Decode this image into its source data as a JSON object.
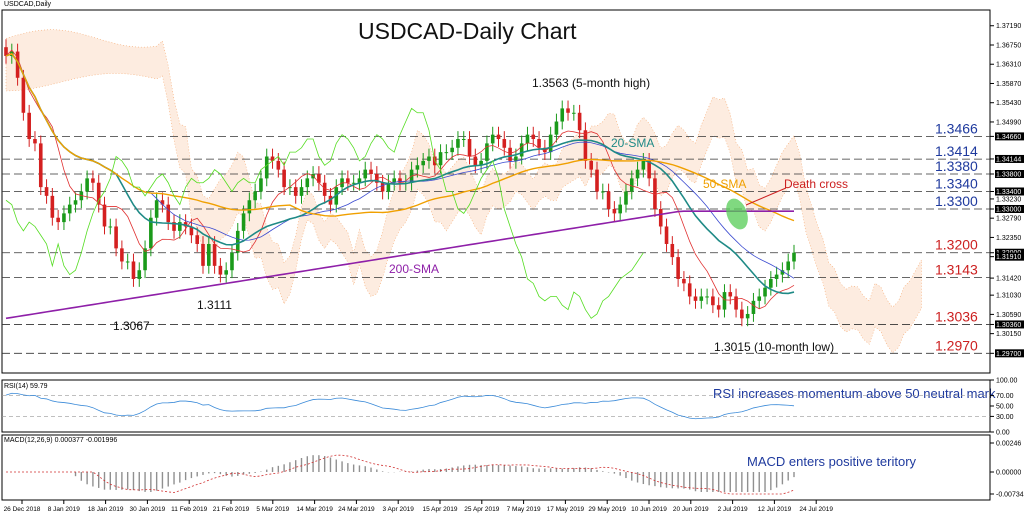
{
  "window": {
    "symbol": "USDCAD,Daily"
  },
  "title": "USDCAD-Daily Chart",
  "colors": {
    "up": "#1a9a1a",
    "down": "#d42020",
    "sma20": "#1f8a86",
    "sma50": "#f0a000",
    "sma200": "#8e1fa8",
    "annotation_blue": "#1f3a9e",
    "annotation_red": "#cc2020",
    "ichimoku_green": "#55dd22",
    "ichimoku_blue": "#3a4ad0",
    "ichimoku_red": "#e03030",
    "cloud": "#f4a870",
    "rsi": "#3a8ad8",
    "macd_hist": "#909090",
    "macd_signal": "#d03030",
    "death_cross": "#55cc55"
  },
  "chart_data": {
    "type": "candlestick",
    "y_range": [
      1.2925,
      1.3755
    ],
    "y_ticks": [
      "1.37190",
      "1.36750",
      "1.36310",
      "1.35870",
      "1.35430",
      "1.34990",
      "1.34660",
      "1.34144",
      "1.33800",
      "1.33400",
      "1.33230",
      "1.33000",
      "1.32790",
      "1.32350",
      "1.32000",
      "1.31910",
      "1.31420",
      "1.31030",
      "1.30590",
      "1.30360",
      "1.30150",
      "1.29700"
    ],
    "x_labels": [
      "26 Dec 2018",
      "8 Jan 2019",
      "18 Jan 2019",
      "30 Jan 2019",
      "11 Feb 2019",
      "21 Feb 2019",
      "5 Mar 2019",
      "14 Mar 2019",
      "24 Mar 2019",
      "3 Apr 2019",
      "15 Apr 2019",
      "25 Apr 2019",
      "7 May 2019",
      "17 May 2019",
      "29 May 2019",
      "10 Jun 2019",
      "20 Jun 2019",
      "2 Jul 2019",
      "12 Jul 2019",
      "24 Jul 2019"
    ],
    "close_path": [
      1.365,
      1.366,
      1.36,
      1.352,
      1.346,
      1.345,
      1.335,
      1.333,
      1.328,
      1.327,
      1.329,
      1.331,
      1.332,
      1.334,
      1.337,
      1.336,
      1.331,
      1.326,
      1.326,
      1.321,
      1.318,
      1.318,
      1.314,
      1.316,
      1.321,
      1.328,
      1.332,
      1.331,
      1.327,
      1.325,
      1.327,
      1.326,
      1.324,
      1.322,
      1.317,
      1.322,
      1.317,
      1.315,
      1.316,
      1.32,
      1.325,
      1.329,
      1.332,
      1.334,
      1.337,
      1.342,
      1.341,
      1.339,
      1.335,
      1.335,
      1.333,
      1.335,
      1.337,
      1.338,
      1.336,
      1.333,
      1.331,
      1.335,
      1.337,
      1.336,
      1.336,
      1.337,
      1.339,
      1.338,
      1.336,
      1.334,
      1.336,
      1.337,
      1.336,
      1.336,
      1.339,
      1.34,
      1.341,
      1.342,
      1.34,
      1.343,
      1.343,
      1.344,
      1.346,
      1.346,
      1.342,
      1.34,
      1.341,
      1.345,
      1.347,
      1.346,
      1.344,
      1.341,
      1.342,
      1.345,
      1.347,
      1.346,
      1.344,
      1.343,
      1.347,
      1.35,
      1.353,
      1.352,
      1.352,
      1.348,
      1.341,
      1.339,
      1.334,
      1.334,
      1.33,
      1.329,
      1.331,
      1.334,
      1.337,
      1.339,
      1.341,
      1.337,
      1.33,
      1.326,
      1.322,
      1.319,
      1.314,
      1.313,
      1.31,
      1.309,
      1.31,
      1.31,
      1.308,
      1.307,
      1.311,
      1.31,
      1.307,
      1.305,
      1.306,
      1.309,
      1.31,
      1.312,
      1.314,
      1.315,
      1.316,
      1.318,
      1.32
    ],
    "levels": [
      {
        "value": 1.3466,
        "label": "1.3466",
        "color": "blue"
      },
      {
        "value": 1.3414,
        "label": "1.3414",
        "color": "blue"
      },
      {
        "value": 1.338,
        "label": "1.3380",
        "color": "blue"
      },
      {
        "value": 1.334,
        "label": "1.3340",
        "color": "blue"
      },
      {
        "value": 1.33,
        "label": "1.3300",
        "color": "blue"
      },
      {
        "value": 1.32,
        "label": "1.3200",
        "color": "red"
      },
      {
        "value": 1.3143,
        "label": "1.3143",
        "color": "red"
      },
      {
        "value": 1.3036,
        "label": "1.3036",
        "color": "red"
      },
      {
        "value": 1.297,
        "label": "1.2970",
        "color": "red"
      }
    ],
    "annotations": [
      "1.3563 (5-month high)",
      "1.3067",
      "1.3111",
      "1.3015 (10-month  low)",
      "Death cross"
    ],
    "indicator_labels": [
      "20-SMA",
      "50-SMA",
      "200-SMA"
    ]
  },
  "rsi": {
    "header": "RSI(14) 59.79",
    "ticks": [
      "100.00",
      "70.00",
      "50.00",
      "30.00",
      "0.00"
    ],
    "note": "RSI increases momentum above 50 neutral mark"
  },
  "macd": {
    "header": "MACD(12,26,9) 0.000377 -0.001996",
    "ticks": [
      "0.00246",
      "0.00000",
      "-0.00734"
    ],
    "note": "MACD enters positive teritory"
  }
}
